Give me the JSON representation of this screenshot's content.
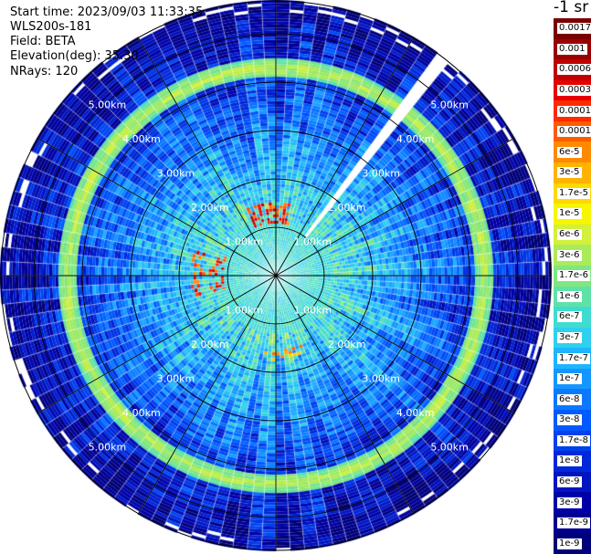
{
  "info": {
    "start_time": "Start time: 2023/09/03 11:33:35",
    "instrument": "WLS200s-181",
    "field": "Field: BETA",
    "elevation": "Elevation(deg): 35.30",
    "nrays": "NRays: 120"
  },
  "colorbar": {
    "title": "-1 sr",
    "labels": [
      "0.0017",
      "0.001",
      "0.0006",
      "0.0003",
      "0.00017",
      "0.0001",
      "6e-5",
      "3e-5",
      "1.7e-5",
      "1e-5",
      "6e-6",
      "3e-6",
      "1.7e-6",
      "1e-6",
      "6e-7",
      "3e-7",
      "1.7e-7",
      "1e-7",
      "6e-8",
      "3e-8",
      "1.7e-8",
      "1e-8",
      "6e-9",
      "3e-9",
      "1.7e-9",
      "1e-9"
    ],
    "colors": [
      "#7a0000",
      "#9b0000",
      "#c00000",
      "#e60000",
      "#ff2a00",
      "#ff5a00",
      "#ff8a00",
      "#ffb300",
      "#ffd800",
      "#f6f600",
      "#d2f03c",
      "#aaeb5a",
      "#80e680",
      "#5ee2a8",
      "#3fdcd0",
      "#2fd0ee",
      "#1eb4ff",
      "#1496ff",
      "#0a78ff",
      "#005aff",
      "#0040ee",
      "#0028d8",
      "#0014c0",
      "#0000a8",
      "#000090",
      "#000078"
    ]
  },
  "chart_data": {
    "type": "heatmap",
    "projection": "polar (PPI)",
    "field": "BETA",
    "units": "-1 sr",
    "nrays": 120,
    "range_rings_km": [
      1,
      2,
      3,
      4,
      5
    ],
    "range_ring_labels": [
      "1.00km",
      "2.00km",
      "3.00km",
      "4.00km",
      "5.00km"
    ],
    "max_range_km": 5.7,
    "radial_lines_deg": [
      0,
      30,
      60,
      90,
      120,
      150,
      180,
      210,
      240,
      270,
      300,
      330
    ],
    "color_scale": "log",
    "value_range": [
      1e-09,
      0.0017
    ],
    "features": [
      {
        "description": "aerosol ring",
        "range_km": 4.3,
        "value_approx": 6e-06
      },
      {
        "description": "near-field high backscatter patches",
        "range_km": 1.5,
        "value_approx": 3e-05
      },
      {
        "description": "blocked beams",
        "azimuth_deg": [
          35,
          40
        ]
      }
    ]
  }
}
